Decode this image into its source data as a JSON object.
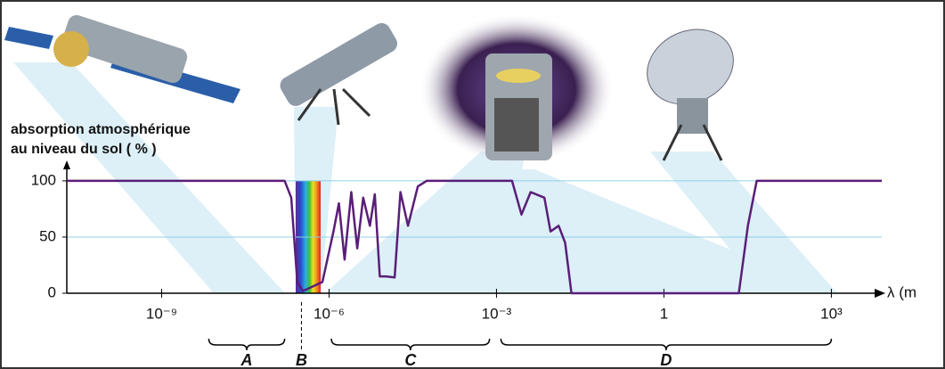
{
  "chart_data": {
    "type": "line",
    "ylabel": [
      "absorption atmosphérique",
      "au niveau du sol ( % )"
    ],
    "xlabel": "λ (m",
    "xscale": "log",
    "x": [
      2e-11,
      1.6e-07,
      2.1e-07,
      2.7e-07,
      3.4e-07,
      4.6e-07,
      7.6e-07,
      1.2e-06,
      1.5e-06,
      1.9e-06,
      2.5e-06,
      3.2e-06,
      4.1e-06,
      5.4e-06,
      6.6e-06,
      8.1e-06,
      1.05e-05,
      1.5e-05,
      1.9e-05,
      2.6e-05,
      3.9e-05,
      5.6e-05,
      0.0019,
      0.0028,
      0.0041,
      0.0072,
      0.0093,
      0.013,
      0.017,
      0.022,
      0.035,
      22,
      32,
      46,
      8000
    ],
    "values": [
      100,
      100,
      85,
      10,
      2,
      5,
      10,
      55,
      80,
      30,
      90,
      40,
      85,
      60,
      88,
      15,
      15,
      14,
      90,
      60,
      95,
      100,
      100,
      70,
      90,
      85,
      55,
      60,
      45,
      0,
      0,
      0,
      60,
      100,
      100
    ],
    "color": "#5a1e78",
    "xlim": [
      2e-11,
      8000
    ],
    "ylim": [
      0,
      115
    ],
    "xticks": [
      {
        "value": 1e-09,
        "label": "10⁻⁹"
      },
      {
        "value": 1e-06,
        "label": "10⁻⁶"
      },
      {
        "value": 0.001,
        "label": "10⁻³"
      },
      1,
      {
        "value": 1000,
        "label": "10³"
      }
    ],
    "yticks": [
      0,
      50,
      100
    ],
    "grid": true,
    "bands": [
      {
        "label": "A",
        "range": [
          7e-09,
          1.6e-07
        ]
      },
      {
        "label": "B",
        "at": 3.2e-07
      },
      {
        "label": "C",
        "range": [
          1.1e-06,
          0.00075
        ]
      },
      {
        "label": "D",
        "range": [
          0.0012,
          1000
        ]
      }
    ]
  }
}
